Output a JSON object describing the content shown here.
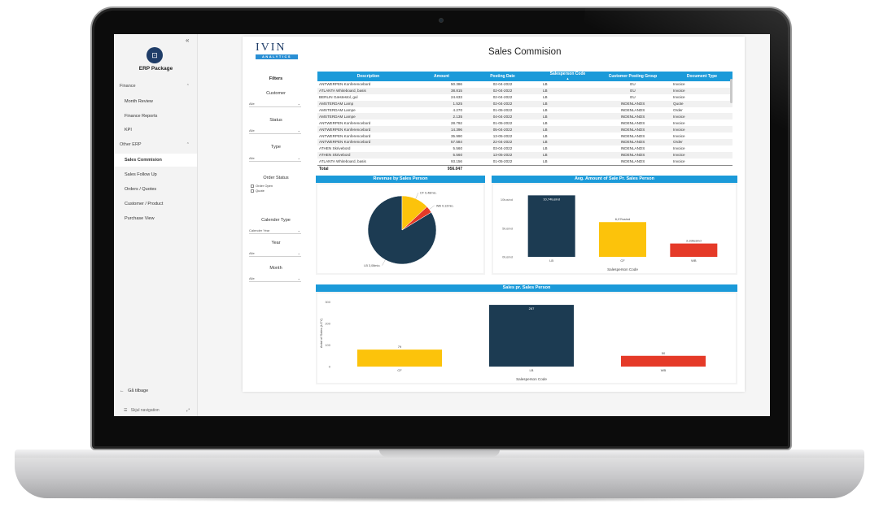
{
  "sidebar": {
    "collapse_icon": "«",
    "app_title": "ERP Package",
    "sections": [
      {
        "label": "Finance",
        "items": [
          "Month Review",
          "Finance Reports",
          "KPI"
        ]
      },
      {
        "label": "Other ERP",
        "items": [
          "Sales Commision",
          "Sales Follow Up",
          "Orders / Quotes",
          "Customer / Product",
          "Purchase View"
        ]
      }
    ],
    "active_item": "Sales Commision",
    "back_label": "Gå tilbage",
    "hide_nav_label": "Skjul navigation"
  },
  "brand": {
    "top": "IVIN",
    "bottom": "ANALYTICS"
  },
  "report": {
    "title": "Sales Commision"
  },
  "filters": {
    "heading": "Filters",
    "customer": {
      "label": "Customer",
      "value": "Alle"
    },
    "status": {
      "label": "Status",
      "value": "Alle"
    },
    "type": {
      "label": "Type",
      "value": "Alle"
    },
    "order_status": {
      "label": "Order Status",
      "options": [
        "Order Open",
        "Quote"
      ]
    },
    "calender_type": {
      "label": "Calender Type",
      "value": "Calender Year"
    },
    "year": {
      "label": "Year",
      "value": "Alle"
    },
    "month": {
      "label": "Month",
      "value": "Alle"
    }
  },
  "table": {
    "columns": [
      "Description",
      "Amount",
      "Posting Date",
      "Salesperson Code",
      "Customer Posting Group",
      "Document Type"
    ],
    "sort_indicator": "▲",
    "rows": [
      [
        "ANTWERPEN Konferencebord",
        "50.386",
        "02-04-2022",
        "LB",
        "EU",
        "Invoice"
      ],
      [
        "ATLANTA Whiteboard, basis",
        "38.815",
        "02-04-2022",
        "LB",
        "EU",
        "Invoice"
      ],
      [
        "BERLIN Gæstestol, gul",
        "24.633",
        "02-04-2022",
        "LB",
        "EU",
        "Invoice"
      ],
      [
        "AMSTERDAM Lamp",
        "1.525",
        "02-04-2022",
        "LB",
        "INDENLANDS",
        "Quote"
      ],
      [
        "AMSTERDAM Lampe",
        "4.270",
        "01-05-2022",
        "LB",
        "INDENLANDS",
        "Order"
      ],
      [
        "AMSTERDAM Lampe",
        "2.135",
        "04-04-2022",
        "LB",
        "INDENLANDS",
        "Invoice"
      ],
      [
        "ANTWERPEN Konferencebord",
        "28.792",
        "01-05-2022",
        "LB",
        "INDENLANDS",
        "Invoice"
      ],
      [
        "ANTWERPEN Konferencebord",
        "14.396",
        "05-04-2022",
        "LB",
        "INDENLANDS",
        "Invoice"
      ],
      [
        "ANTWERPEN Konferencebord",
        "35.990",
        "13-05-2022",
        "LB",
        "INDENLANDS",
        "Invoice"
      ],
      [
        "ANTWERPEN Konferencebord",
        "57.584",
        "22-04-2022",
        "LB",
        "INDENLANDS",
        "Order"
      ],
      [
        "ATHEN Skrivebord",
        "5.560",
        "03-04-2022",
        "LB",
        "INDENLANDS",
        "Invoice"
      ],
      [
        "ATHEN Skrivebord",
        "5.560",
        "13-05-2022",
        "LB",
        "INDENLANDS",
        "Invoice"
      ],
      [
        "ATLANTA Whiteboard, basis",
        "93.156",
        "01-05-2022",
        "LB",
        "INDENLANDS",
        "Invoice"
      ]
    ],
    "total_label": "Total",
    "total_value": "956.047"
  },
  "chart_data": [
    {
      "type": "pie",
      "title": "Revenue by Sales Person",
      "labels": [
        "LB",
        "CF",
        "WB"
      ],
      "values": [
        3.08,
        0.48,
        0.12
      ],
      "data_labels": [
        "LB 3,08mio.",
        "CF 0,48mio.",
        "WB 0,12mio."
      ],
      "colors": [
        "#1c3b52",
        "#fcc30b",
        "#e53a28"
      ]
    },
    {
      "type": "bar",
      "title": "Avg. Amount of Sale Pr. Sales Person",
      "categories": [
        "LB",
        "CF",
        "WB"
      ],
      "values": [
        10.74,
        6.07,
        2.33
      ],
      "data_labels": [
        "10,74tusind",
        "6,07tusind",
        "2,33tusind"
      ],
      "yticks": [
        "10tusind",
        "5tusind",
        "0tusind"
      ],
      "ytick_values": [
        10,
        5,
        0
      ],
      "ylim": [
        0,
        11.5
      ],
      "xlabel": "Salesperson Code",
      "ylabel": "",
      "colors": [
        "#1c3b52",
        "#fcc30b",
        "#e53a28"
      ]
    },
    {
      "type": "bar",
      "title": "Sales pr. Sales Person",
      "categories": [
        "CF",
        "LB",
        "WB"
      ],
      "values": [
        79,
        287,
        50
      ],
      "data_labels": [
        "79",
        "287",
        "50"
      ],
      "yticks": [
        "300",
        "200",
        "100",
        "0"
      ],
      "ytick_values": [
        300,
        200,
        100,
        0
      ],
      "ylim": [
        0,
        310
      ],
      "xlabel": "Salesperson Code",
      "ylabel": "Antal of Sales (LCY)",
      "colors": [
        "#fcc30b",
        "#1c3b52",
        "#e53a28"
      ]
    }
  ]
}
